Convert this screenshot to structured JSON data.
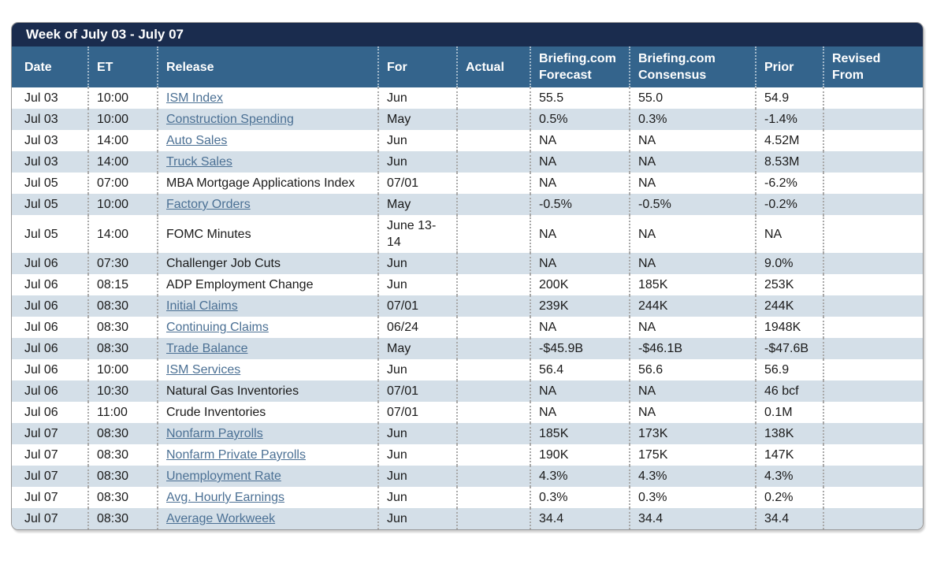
{
  "title": "Week of July 03 - July 07",
  "columns": [
    "Date",
    "ET",
    "Release",
    "For",
    "Actual",
    "Briefing.com Forecast",
    "Briefing.com Consensus",
    "Prior",
    "Revised From"
  ],
  "rows": [
    {
      "date": "Jul 03",
      "et": "10:00",
      "release": "ISM Index",
      "is_link": true,
      "for": "Jun",
      "actual": "",
      "forecast": "55.5",
      "consensus": "55.0",
      "prior": "54.9",
      "revised_from": ""
    },
    {
      "date": "Jul 03",
      "et": "10:00",
      "release": "Construction Spending",
      "is_link": true,
      "for": "May",
      "actual": "",
      "forecast": "0.5%",
      "consensus": "0.3%",
      "prior": "-1.4%",
      "revised_from": ""
    },
    {
      "date": "Jul 03",
      "et": "14:00",
      "release": "Auto Sales",
      "is_link": true,
      "for": "Jun",
      "actual": "",
      "forecast": "NA",
      "consensus": "NA",
      "prior": "4.52M",
      "revised_from": ""
    },
    {
      "date": "Jul 03",
      "et": "14:00",
      "release": "Truck Sales",
      "is_link": true,
      "for": "Jun",
      "actual": "",
      "forecast": "NA",
      "consensus": "NA",
      "prior": "8.53M",
      "revised_from": ""
    },
    {
      "date": "Jul 05",
      "et": "07:00",
      "release": "MBA Mortgage Applications Index",
      "is_link": false,
      "for": "07/01",
      "actual": "",
      "forecast": "NA",
      "consensus": "NA",
      "prior": "-6.2%",
      "revised_from": ""
    },
    {
      "date": "Jul 05",
      "et": "10:00",
      "release": "Factory Orders",
      "is_link": true,
      "for": "May",
      "actual": "",
      "forecast": "-0.5%",
      "consensus": "-0.5%",
      "prior": "-0.2%",
      "revised_from": ""
    },
    {
      "date": "Jul 05",
      "et": "14:00",
      "release": "FOMC Minutes",
      "is_link": false,
      "for": "June 13-14",
      "actual": "",
      "forecast": "NA",
      "consensus": "NA",
      "prior": "NA",
      "revised_from": ""
    },
    {
      "date": "Jul 06",
      "et": "07:30",
      "release": "Challenger Job Cuts",
      "is_link": false,
      "for": "Jun",
      "actual": "",
      "forecast": "NA",
      "consensus": "NA",
      "prior": "9.0%",
      "revised_from": ""
    },
    {
      "date": "Jul 06",
      "et": "08:15",
      "release": "ADP Employment Change",
      "is_link": false,
      "for": "Jun",
      "actual": "",
      "forecast": "200K",
      "consensus": "185K",
      "prior": "253K",
      "revised_from": ""
    },
    {
      "date": "Jul 06",
      "et": "08:30",
      "release": "Initial Claims",
      "is_link": true,
      "for": "07/01",
      "actual": "",
      "forecast": "239K",
      "consensus": "244K",
      "prior": "244K",
      "revised_from": ""
    },
    {
      "date": "Jul 06",
      "et": "08:30",
      "release": "Continuing Claims",
      "is_link": true,
      "for": "06/24",
      "actual": "",
      "forecast": "NA",
      "consensus": "NA",
      "prior": "1948K",
      "revised_from": ""
    },
    {
      "date": "Jul 06",
      "et": "08:30",
      "release": "Trade Balance",
      "is_link": true,
      "for": "May",
      "actual": "",
      "forecast": "-$45.9B",
      "consensus": "-$46.1B",
      "prior": "-$47.6B",
      "revised_from": ""
    },
    {
      "date": "Jul 06",
      "et": "10:00",
      "release": "ISM Services",
      "is_link": true,
      "for": "Jun",
      "actual": "",
      "forecast": "56.4",
      "consensus": "56.6",
      "prior": "56.9",
      "revised_from": ""
    },
    {
      "date": "Jul 06",
      "et": "10:30",
      "release": "Natural Gas Inventories",
      "is_link": false,
      "for": "07/01",
      "actual": "",
      "forecast": "NA",
      "consensus": "NA",
      "prior": "46 bcf",
      "revised_from": ""
    },
    {
      "date": "Jul 06",
      "et": "11:00",
      "release": "Crude Inventories",
      "is_link": false,
      "for": "07/01",
      "actual": "",
      "forecast": "NA",
      "consensus": "NA",
      "prior": "0.1M",
      "revised_from": ""
    },
    {
      "date": "Jul 07",
      "et": "08:30",
      "release": "Nonfarm Payrolls",
      "is_link": true,
      "for": "Jun",
      "actual": "",
      "forecast": "185K",
      "consensus": "173K",
      "prior": "138K",
      "revised_from": ""
    },
    {
      "date": "Jul 07",
      "et": "08:30",
      "release": "Nonfarm Private Payrolls",
      "is_link": true,
      "for": "Jun",
      "actual": "",
      "forecast": "190K",
      "consensus": "175K",
      "prior": "147K",
      "revised_from": ""
    },
    {
      "date": "Jul 07",
      "et": "08:30",
      "release": "Unemployment Rate",
      "is_link": true,
      "for": "Jun",
      "actual": "",
      "forecast": "4.3%",
      "consensus": "4.3%",
      "prior": "4.3%",
      "revised_from": ""
    },
    {
      "date": "Jul 07",
      "et": "08:30",
      "release": "Avg. Hourly Earnings",
      "is_link": true,
      "for": "Jun",
      "actual": "",
      "forecast": "0.3%",
      "consensus": "0.3%",
      "prior": "0.2%",
      "revised_from": ""
    },
    {
      "date": "Jul 07",
      "et": "08:30",
      "release": "Average Workweek",
      "is_link": true,
      "for": "Jun",
      "actual": "",
      "forecast": "34.4",
      "consensus": "34.4",
      "prior": "34.4",
      "revised_from": ""
    }
  ],
  "colors": {
    "title_bar": "#1a2c4e",
    "column_header": "#34648c",
    "row_alt": "#d4dfe8",
    "link": "#4b7094",
    "body_text": "#1a1a1a",
    "border": "#979797"
  }
}
